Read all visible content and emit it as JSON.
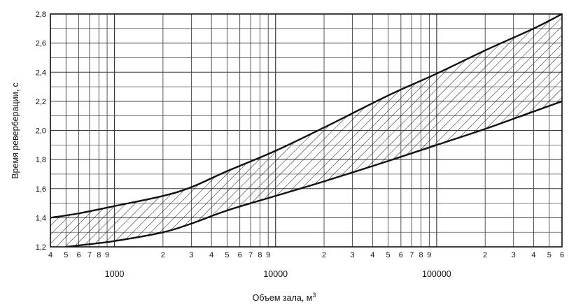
{
  "chart_data": {
    "type": "area",
    "xscale": "log",
    "xlim": [
      400,
      600000
    ],
    "ylim": [
      1.2,
      2.8
    ],
    "grid": true,
    "xlabel": "Объем зала, м",
    "xlabel_superscript": "3",
    "ylabel": "Время реверберации, с",
    "y_ticks": [
      "1,2",
      "1,4",
      "1,6",
      "1,8",
      "2,0",
      "2,2",
      "2,4",
      "2,6",
      "2,8"
    ],
    "x_minor_ticks": [
      {
        "value": 400,
        "label": "4"
      },
      {
        "value": 500,
        "label": "5"
      },
      {
        "value": 600,
        "label": "6"
      },
      {
        "value": 700,
        "label": "7"
      },
      {
        "value": 800,
        "label": "8"
      },
      {
        "value": 900,
        "label": "9"
      },
      {
        "value": 2000,
        "label": "2"
      },
      {
        "value": 3000,
        "label": "3"
      },
      {
        "value": 4000,
        "label": "4"
      },
      {
        "value": 5000,
        "label": "5"
      },
      {
        "value": 6000,
        "label": "6"
      },
      {
        "value": 7000,
        "label": "7"
      },
      {
        "value": 8000,
        "label": "8"
      },
      {
        "value": 9000,
        "label": "9"
      },
      {
        "value": 20000,
        "label": "2"
      },
      {
        "value": 30000,
        "label": "3"
      },
      {
        "value": 40000,
        "label": "4"
      },
      {
        "value": 50000,
        "label": "5"
      },
      {
        "value": 60000,
        "label": "6"
      },
      {
        "value": 70000,
        "label": "7"
      },
      {
        "value": 80000,
        "label": "8"
      },
      {
        "value": 90000,
        "label": "9"
      },
      {
        "value": 200000,
        "label": "2"
      },
      {
        "value": 300000,
        "label": "3"
      },
      {
        "value": 400000,
        "label": "4"
      },
      {
        "value": 500000,
        "label": "5"
      },
      {
        "value": 600000,
        "label": "6"
      }
    ],
    "x_decade_labels": [
      {
        "value": 1000,
        "label": "1000"
      },
      {
        "value": 10000,
        "label": "10000"
      },
      {
        "value": 100000,
        "label": "100000"
      }
    ],
    "series": [
      {
        "key": "upper",
        "x": [
          400,
          600,
          1000,
          2000,
          3000,
          5000,
          10000,
          20000,
          50000,
          100000,
          200000,
          400000,
          600000
        ],
        "y": [
          1.4,
          1.43,
          1.48,
          1.55,
          1.61,
          1.72,
          1.86,
          2.02,
          2.24,
          2.39,
          2.55,
          2.7,
          2.8
        ]
      },
      {
        "key": "lower",
        "x": [
          500,
          600,
          1000,
          2000,
          3000,
          5000,
          10000,
          20000,
          50000,
          100000,
          200000,
          400000,
          600000
        ],
        "y": [
          1.2,
          1.21,
          1.24,
          1.3,
          1.36,
          1.45,
          1.55,
          1.65,
          1.79,
          1.9,
          2.01,
          2.13,
          2.2
        ]
      }
    ],
    "colors": {
      "line": "#111111",
      "grid": "#3a3a3a",
      "hatch": "#1a1a1a",
      "background": "#ffffff"
    }
  }
}
